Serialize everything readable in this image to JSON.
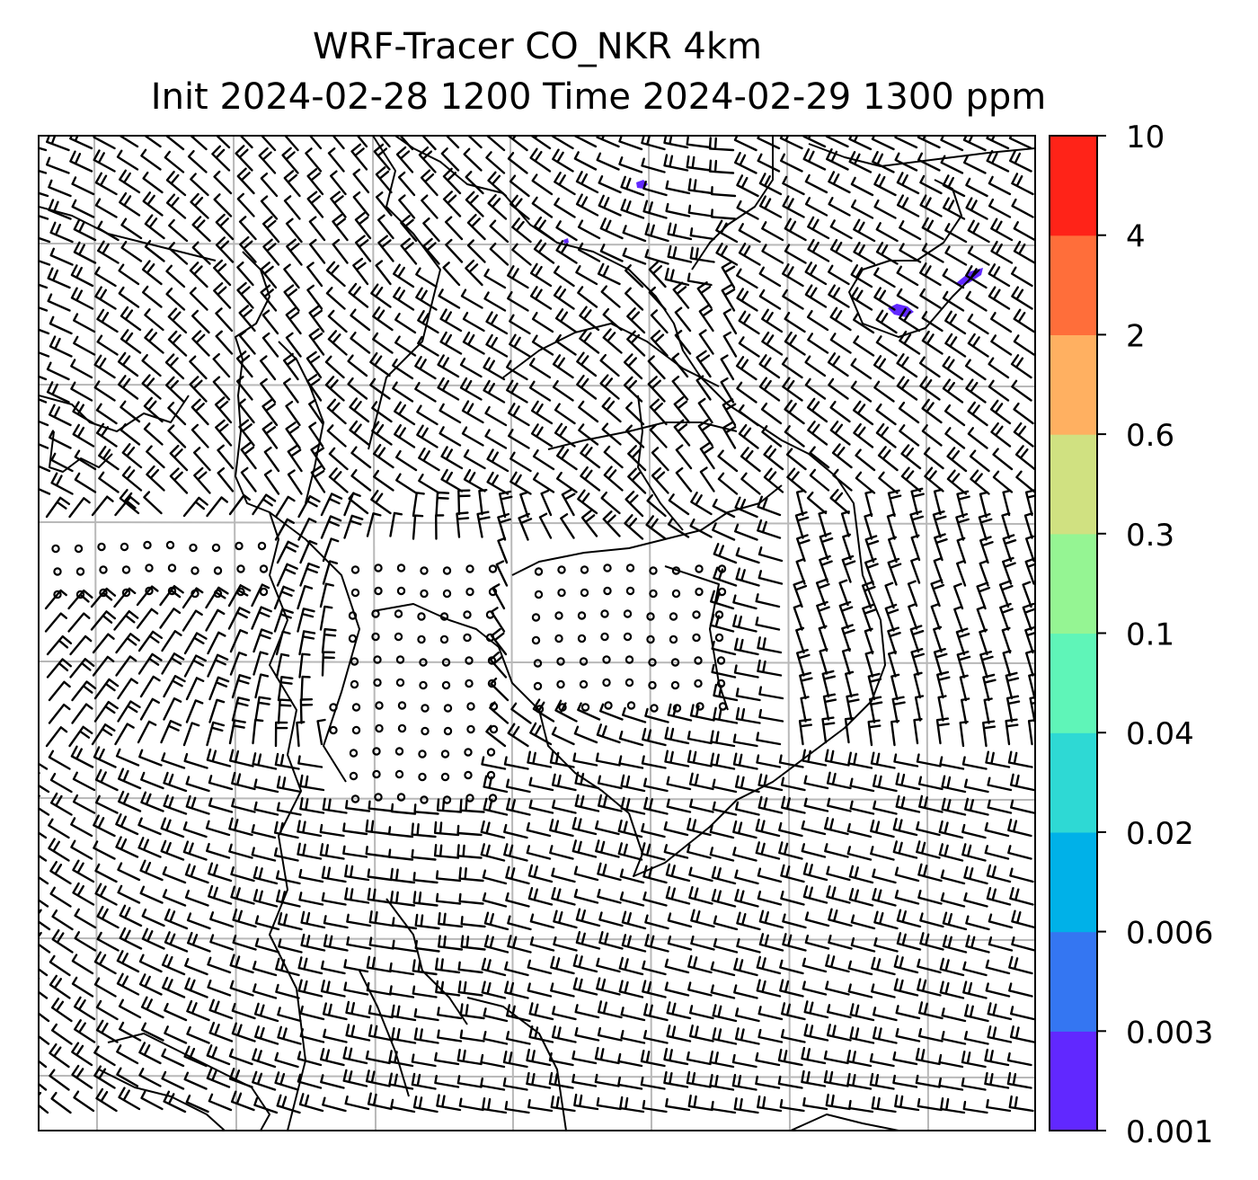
{
  "title": {
    "line1": "WRF-Tracer CO_NKR 4km",
    "line2": "Init 2024-02-28 1200 Time 2024-02-29 1300 ppm"
  },
  "colorbar": {
    "tick_labels": [
      "0.001",
      "0.003",
      "0.006",
      "0.02",
      "0.04",
      "0.1",
      "0.3",
      "0.6",
      "2",
      "4",
      "10"
    ],
    "colors": [
      "#6128ff",
      "#3476f2",
      "#00b1e8",
      "#2ed9d4",
      "#5ff5b8",
      "#95f593",
      "#d0e181",
      "#ffb061",
      "#ff6e3a",
      "#ff2318"
    ]
  },
  "map": {
    "gridline_color": "#b8b8b8",
    "coastline_color": "#000000",
    "barb_color": "#000000",
    "tracer_color": "#6128ff",
    "tracer_patches": [
      "north-center",
      "north-center-small",
      "northeast-large",
      "northeast-small"
    ]
  }
}
